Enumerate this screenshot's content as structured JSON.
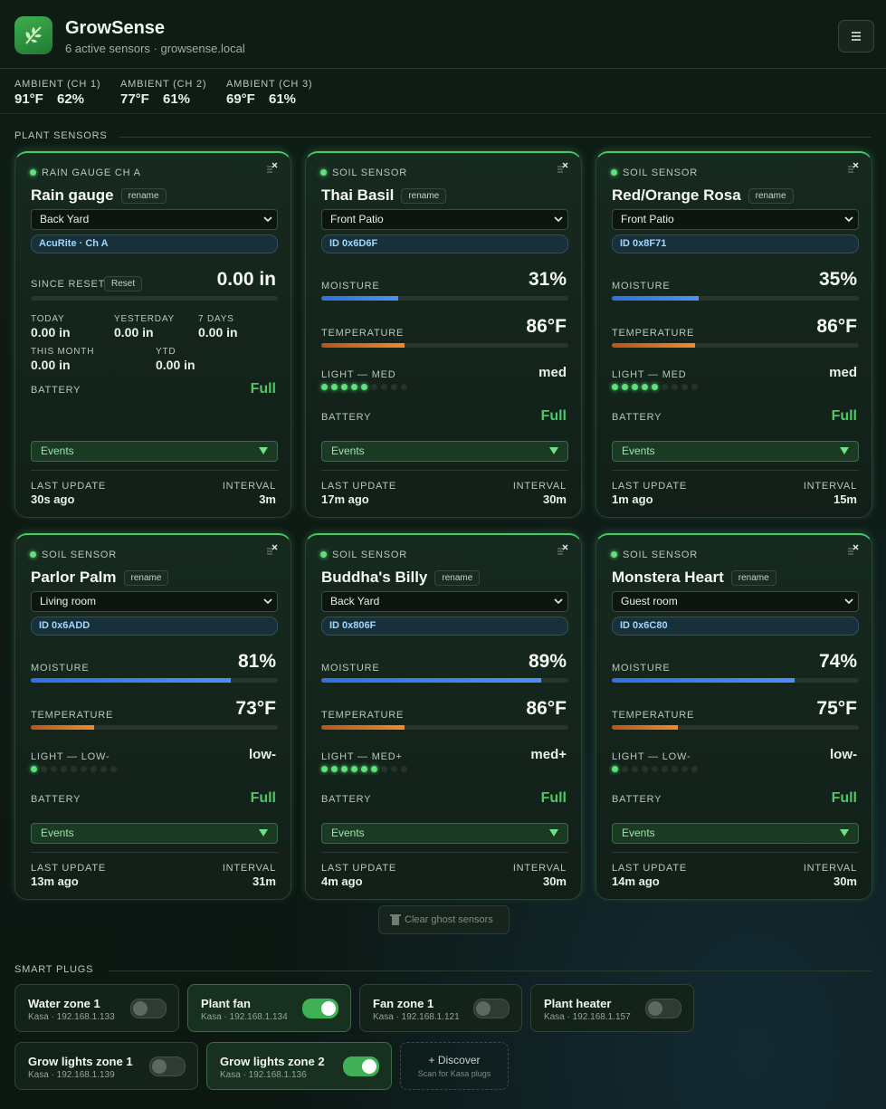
{
  "header": {
    "title": "GrowSense",
    "subtitle": "6 active sensors · growsense.local"
  },
  "ambient": [
    {
      "label": "AMBIENT (CH 1)",
      "temperature": "91°F",
      "humidity": "62%"
    },
    {
      "label": "AMBIENT (CH 2)",
      "temperature": "77°F",
      "humidity": "61%"
    },
    {
      "label": "AMBIENT (CH 3)",
      "temperature": "69°F",
      "humidity": "61%"
    }
  ],
  "plant_sensors": {
    "heading": "PLANT SENSORS",
    "cards": [
      {
        "kind": "RAIN GAUGE CH A",
        "name": "Rain gauge",
        "rename": "rename",
        "location": "Back Yard",
        "id": "AcuRite · Ch A",
        "since_reset_label": "SINCE RESET",
        "reset_button": "Reset",
        "since_reset": "0.00 in",
        "stats": [
          {
            "label": "TODAY",
            "value": "0.00 in"
          },
          {
            "label": "YESTERDAY",
            "value": "0.00 in"
          },
          {
            "label": "7 DAYS",
            "value": "0.00 in"
          },
          {
            "label": "THIS MONTH",
            "value": "0.00 in"
          },
          {
            "label": "YTD",
            "value": "0.00 in"
          }
        ],
        "battery_label": "BATTERY",
        "battery": "Full",
        "events": "Events",
        "last_update_label": "LAST UPDATE",
        "last_update": "30s ago",
        "interval_label": "INTERVAL",
        "interval": "3m"
      },
      {
        "kind": "SOIL SENSOR",
        "name": "Thai Basil",
        "rename": "rename",
        "location": "Front Patio",
        "id": "ID 0x6D6F",
        "moisture_label": "MOISTURE",
        "moisture": {
          "value": 31,
          "label": "31%"
        },
        "temperature_label": "TEMPERATURE",
        "temperature": {
          "value": 86,
          "label": "86°F"
        },
        "light_label": "LIGHT — MED",
        "light": "med",
        "light_dots": 5,
        "battery_label": "BATTERY",
        "battery": "Full",
        "events": "Events",
        "last_update_label": "LAST UPDATE",
        "last_update": "17m ago",
        "interval_label": "INTERVAL",
        "interval": "30m"
      },
      {
        "kind": "SOIL SENSOR",
        "name": "Red/Orange Rosa",
        "rename": "rename",
        "location": "Front Patio",
        "id": "ID 0x8F71",
        "moisture_label": "MOISTURE",
        "moisture": {
          "value": 35,
          "label": "35%"
        },
        "temperature_label": "TEMPERATURE",
        "temperature": {
          "value": 86,
          "label": "86°F"
        },
        "light_label": "LIGHT — MED",
        "light": "med",
        "light_dots": 5,
        "battery_label": "BATTERY",
        "battery": "Full",
        "events": "Events",
        "last_update_label": "LAST UPDATE",
        "last_update": "1m ago",
        "interval_label": "INTERVAL",
        "interval": "15m"
      },
      {
        "kind": "SOIL SENSOR",
        "name": "Parlor Palm",
        "rename": "rename",
        "location": "Living room",
        "id": "ID 0x6ADD",
        "moisture_label": "MOISTURE",
        "moisture": {
          "value": 81,
          "label": "81%"
        },
        "temperature_label": "TEMPERATURE",
        "temperature": {
          "value": 73,
          "label": "73°F"
        },
        "light_label": "LIGHT — LOW-",
        "light": "low-",
        "light_dots": 1,
        "battery_label": "BATTERY",
        "battery": "Full",
        "events": "Events",
        "last_update_label": "LAST UPDATE",
        "last_update": "13m ago",
        "interval_label": "INTERVAL",
        "interval": "31m"
      },
      {
        "kind": "SOIL SENSOR",
        "name": "Buddha's Billy",
        "rename": "rename",
        "location": "Back Yard",
        "id": "ID 0x806F",
        "moisture_label": "MOISTURE",
        "moisture": {
          "value": 89,
          "label": "89%"
        },
        "temperature_label": "TEMPERATURE",
        "temperature": {
          "value": 86,
          "label": "86°F"
        },
        "light_label": "LIGHT — MED+",
        "light": "med+",
        "light_dots": 6,
        "battery_label": "BATTERY",
        "battery": "Full",
        "events": "Events",
        "last_update_label": "LAST UPDATE",
        "last_update": "4m ago",
        "interval_label": "INTERVAL",
        "interval": "30m"
      },
      {
        "kind": "SOIL SENSOR",
        "name": "Monstera Heart",
        "rename": "rename",
        "location": "Guest room",
        "id": "ID 0x6C80",
        "moisture_label": "MOISTURE",
        "moisture": {
          "value": 74,
          "label": "74%"
        },
        "temperature_label": "TEMPERATURE",
        "temperature": {
          "value": 75,
          "label": "75°F"
        },
        "light_label": "LIGHT — LOW-",
        "light": "low-",
        "light_dots": 1,
        "battery_label": "BATTERY",
        "battery": "Full",
        "events": "Events",
        "last_update_label": "LAST UPDATE",
        "last_update": "14m ago",
        "interval_label": "INTERVAL",
        "interval": "30m"
      }
    ],
    "clear_button": "Clear ghost sensors"
  },
  "smart_plugs": {
    "heading": "SMART PLUGS",
    "plugs": [
      {
        "name": "Water zone 1",
        "detail": "Kasa · 192.168.1.133",
        "on": false
      },
      {
        "name": "Plant fan",
        "detail": "Kasa · 192.168.1.134",
        "on": true
      },
      {
        "name": "Fan zone 1",
        "detail": "Kasa · 192.168.1.121",
        "on": false
      },
      {
        "name": "Plant heater",
        "detail": "Kasa · 192.168.1.157",
        "on": false
      },
      {
        "name": "Grow lights zone 1",
        "detail": "Kasa · 192.168.1.139",
        "on": false
      },
      {
        "name": "Grow lights zone 2",
        "detail": "Kasa · 192.168.1.136",
        "on": true
      }
    ],
    "discover": {
      "title": "+ Discover",
      "subtitle": "Scan for Kasa plugs"
    }
  }
}
